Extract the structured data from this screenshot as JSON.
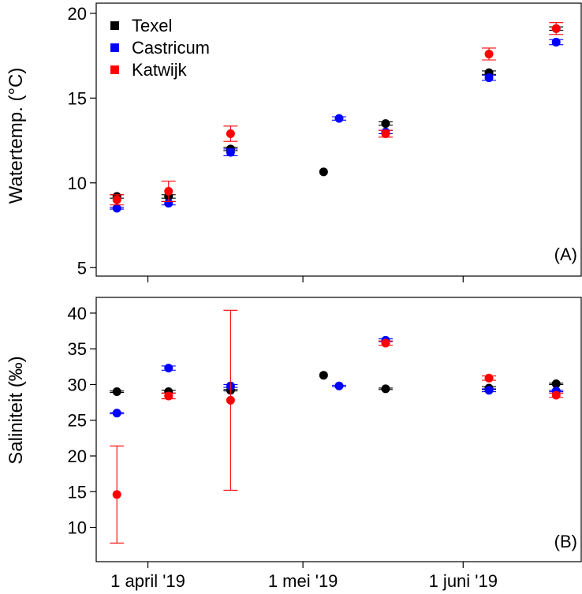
{
  "chart_data": [
    {
      "type": "scatter",
      "panel_label": "(A)",
      "ylabel": "Watertemp. (°C)",
      "ylim": [
        4.5,
        20.6
      ],
      "yticks": [
        5,
        10,
        15,
        20
      ],
      "xlim": [
        "2019-03-22",
        "2019-06-24"
      ],
      "legend": {
        "placement": "top-left",
        "entries": [
          "Texel",
          "Castricum",
          "Katwijk"
        ]
      },
      "series": [
        {
          "name": "Texel",
          "color": "#000000",
          "points": [
            {
              "x": "2019-03-26",
              "y": 9.2,
              "err": 0.1
            },
            {
              "x": "2019-04-05",
              "y": 9.2,
              "err": 0.1
            },
            {
              "x": "2019-04-17",
              "y": 12.0,
              "err": 0.1
            },
            {
              "x": "2019-05-05",
              "y": 10.65,
              "err": 0.0
            },
            {
              "x": "2019-05-17",
              "y": 13.5,
              "err": 0.1
            },
            {
              "x": "2019-06-06",
              "y": 16.5,
              "err": 0.1
            },
            {
              "x": "2019-06-19",
              "y": 19.1,
              "err": 0.1
            }
          ]
        },
        {
          "name": "Castricum",
          "color": "#0000ff",
          "points": [
            {
              "x": "2019-03-26",
              "y": 8.5,
              "err": 0.05
            },
            {
              "x": "2019-04-05",
              "y": 8.8,
              "err": 0.1
            },
            {
              "x": "2019-04-17",
              "y": 11.8,
              "err": 0.2
            },
            {
              "x": "2019-05-08",
              "y": 13.8,
              "err": 0.1
            },
            {
              "x": "2019-05-17",
              "y": 13.0,
              "err": 0.1
            },
            {
              "x": "2019-06-06",
              "y": 16.2,
              "err": 0.15
            },
            {
              "x": "2019-06-19",
              "y": 18.3,
              "err": 0.15
            }
          ]
        },
        {
          "name": "Katwijk",
          "color": "#ff0000",
          "points": [
            {
              "x": "2019-03-26",
              "y": 9.0,
              "err": 0.3
            },
            {
              "x": "2019-04-05",
              "y": 9.5,
              "err": 0.6
            },
            {
              "x": "2019-04-17",
              "y": 12.9,
              "err": 0.45
            },
            {
              "x": "2019-05-17",
              "y": 12.9,
              "err": 0.2
            },
            {
              "x": "2019-06-06",
              "y": 17.6,
              "err": 0.35
            },
            {
              "x": "2019-06-19",
              "y": 19.1,
              "err": 0.35
            }
          ]
        }
      ]
    },
    {
      "type": "scatter",
      "panel_label": "(B)",
      "ylabel": "Saliniteit (‰)",
      "ylim": [
        5.2,
        42.2
      ],
      "yticks": [
        10,
        15,
        20,
        25,
        30,
        35,
        40
      ],
      "xlim": [
        "2019-03-22",
        "2019-06-24"
      ],
      "xticks": [
        {
          "x": "2019-04-01",
          "label": "1 april '19"
        },
        {
          "x": "2019-05-01",
          "label": "1 mei '19"
        },
        {
          "x": "2019-06-01",
          "label": "1 juni '19"
        }
      ],
      "series": [
        {
          "name": "Texel",
          "color": "#000000",
          "points": [
            {
              "x": "2019-03-26",
              "y": 29.0,
              "err": 0.1
            },
            {
              "x": "2019-04-05",
              "y": 29.0,
              "err": 0.2
            },
            {
              "x": "2019-04-17",
              "y": 29.2,
              "err": 0.1
            },
            {
              "x": "2019-05-05",
              "y": 31.3,
              "err": 0.0
            },
            {
              "x": "2019-05-17",
              "y": 29.4,
              "err": 0.1
            },
            {
              "x": "2019-06-06",
              "y": 29.5,
              "err": 0.2
            },
            {
              "x": "2019-06-19",
              "y": 30.1,
              "err": 0.1
            }
          ]
        },
        {
          "name": "Castricum",
          "color": "#0000ff",
          "points": [
            {
              "x": "2019-03-26",
              "y": 26.0,
              "err": 0.1
            },
            {
              "x": "2019-04-05",
              "y": 32.3,
              "err": 0.3
            },
            {
              "x": "2019-04-17",
              "y": 29.8,
              "err": 0.2
            },
            {
              "x": "2019-05-08",
              "y": 29.8,
              "err": 0.1
            },
            {
              "x": "2019-05-17",
              "y": 36.2,
              "err": 0.2
            },
            {
              "x": "2019-06-06",
              "y": 29.2,
              "err": 0.2
            },
            {
              "x": "2019-06-19",
              "y": 29.1,
              "err": 0.1
            }
          ]
        },
        {
          "name": "Katwijk",
          "color": "#ff0000",
          "points": [
            {
              "x": "2019-03-26",
              "y": 14.6,
              "err": 6.8
            },
            {
              "x": "2019-04-05",
              "y": 28.4,
              "err": 0.4
            },
            {
              "x": "2019-04-17",
              "y": 27.8,
              "err": 12.6
            },
            {
              "x": "2019-05-17",
              "y": 35.8,
              "err": 0.3
            },
            {
              "x": "2019-06-06",
              "y": 30.9,
              "err": 0.3
            },
            {
              "x": "2019-06-19",
              "y": 28.5,
              "err": 0.3
            }
          ]
        }
      ]
    }
  ]
}
